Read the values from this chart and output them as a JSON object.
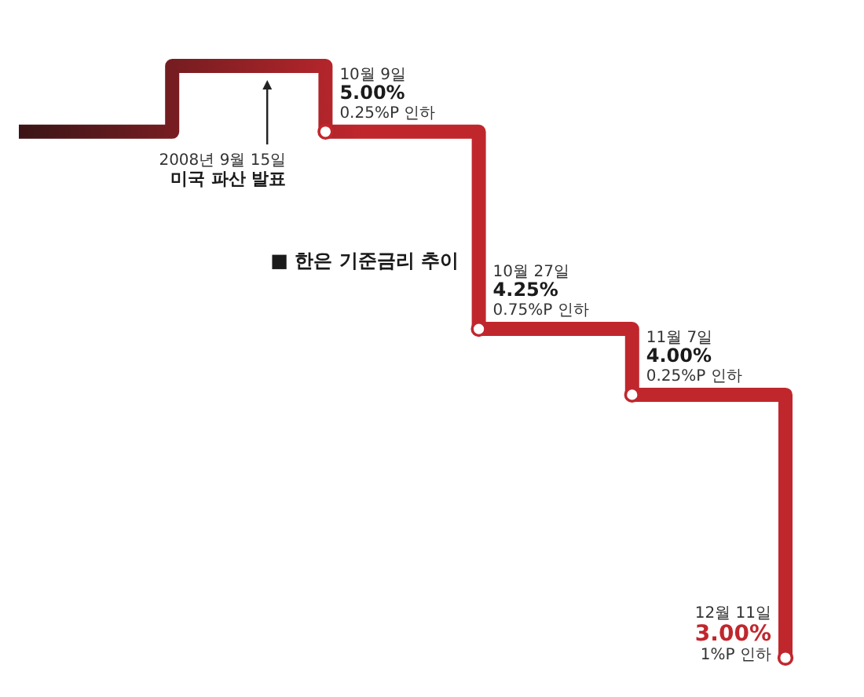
{
  "chart_data": {
    "type": "step",
    "title": "■ 한은 기준금리 추이",
    "categories": [
      null,
      null,
      null,
      null,
      null,
      null
    ],
    "series": [
      {
        "color": "#c0272d",
        "marker": "circle",
        "values": [
          5.0,
          5.25,
          5.0,
          4.25,
          4.0,
          3.0
        ],
        "value_labels": [
          null,
          null,
          "10월 9일\n5.00%\n0.25%P 인하",
          "10월 27일\n4.25%\n0.75%P 인하",
          "11월 7일\n4.00%\n0.25%P 인하",
          "12월 11일\n3.00%\n1%P 인하"
        ]
      }
    ],
    "annotations": [
      "2008년 9월 15일\n미국 파산 발표"
    ]
  }
}
